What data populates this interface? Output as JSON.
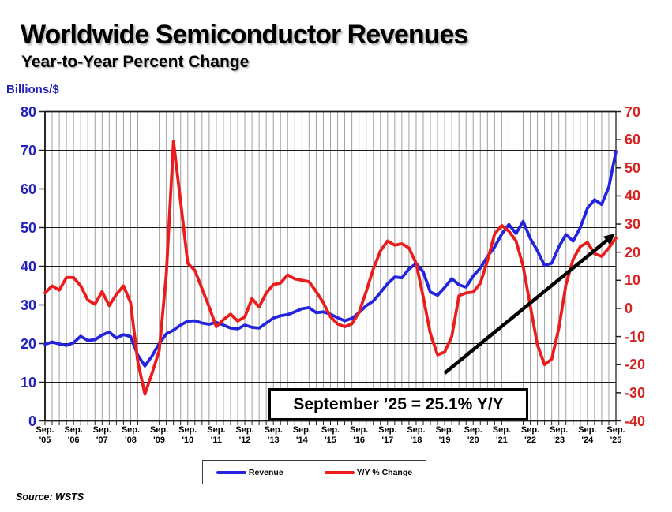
{
  "title": "Worldwide Semiconductor Revenues",
  "subtitle": "Year-to-Year Percent Change",
  "source": "Source: WSTS",
  "annotation": {
    "text": "September ’25 = 25.1% Y/Y"
  },
  "left_axis": {
    "label": "Billions/$",
    "color": "#2323bb",
    "ticks": [
      80,
      70,
      60,
      50,
      40,
      30,
      20,
      10,
      0
    ]
  },
  "right_axis": {
    "color": "#d32424",
    "ticks": [
      70,
      60,
      50,
      40,
      30,
      20,
      10,
      0,
      -10,
      -20,
      -30,
      -40
    ]
  },
  "x_axis": {
    "month_label": "Sep.",
    "years": [
      "'05",
      "'06",
      "'07",
      "'08",
      "'09",
      "'10",
      "'11",
      "'12",
      "'13",
      "'14",
      "'15",
      "'16",
      "'17",
      "'18",
      "'19",
      "'20",
      "'21",
      "'22",
      "'23",
      "'24",
      "'25"
    ]
  },
  "legend": [
    {
      "label": "Revenue",
      "color": "#2424dd"
    },
    {
      "label": "Y/Y % Change",
      "color": "#ea1c1c"
    }
  ],
  "chart_data": {
    "type": "line",
    "title": "Worldwide Semiconductor Revenues",
    "subtitle": "Year-to-Year Percent Change",
    "x_start": "Sep 2005",
    "x_end": "Sep 2025",
    "x_interval_months": 3,
    "left_ylabel": "Billions/$",
    "right_ylabel": "Y/Y % Change",
    "left_ylim": [
      0,
      80
    ],
    "right_ylim": [
      -40,
      70
    ],
    "grid": "vertical quarterly gray lines; horizontal black lines every 10 on left scale",
    "legend_position": "bottom-center",
    "highlight": "September '25 = 25.1% Y/Y (arrow points to last Y/Y value)",
    "series": [
      {
        "name": "Revenue",
        "axis": "left",
        "units": "US$ billions (monthly, 3-month avg)",
        "color": "#2424dd",
        "values": [
          19.8,
          20.4,
          19.9,
          19.5,
          20.2,
          21.9,
          20.8,
          21.0,
          22.2,
          23.0,
          21.4,
          22.3,
          21.8,
          17.0,
          14.2,
          16.8,
          20.0,
          22.5,
          23.5,
          24.8,
          25.8,
          25.9,
          25.3,
          25.0,
          25.5,
          24.8,
          24.0,
          23.8,
          24.8,
          24.2,
          24.0,
          25.3,
          26.6,
          27.2,
          27.5,
          28.2,
          29.0,
          29.3,
          28.0,
          28.2,
          27.6,
          26.7,
          25.9,
          26.5,
          28.0,
          29.8,
          31.0,
          33.2,
          35.5,
          37.2,
          37.0,
          39.3,
          40.7,
          38.5,
          33.3,
          32.5,
          34.5,
          36.8,
          35.2,
          34.6,
          37.5,
          39.5,
          42.5,
          45.0,
          48.3,
          50.8,
          48.5,
          51.6,
          47.2,
          44.0,
          40.2,
          40.8,
          45.0,
          48.2,
          46.5,
          50.0,
          55.0,
          57.2,
          56.0,
          60.5,
          69.7
        ]
      },
      {
        "name": "Y/Y % Change",
        "axis": "right",
        "units": "percent",
        "color": "#ea1c1c",
        "values": [
          5.5,
          8.0,
          6.5,
          11.0,
          11.0,
          8.0,
          3.0,
          1.5,
          6.0,
          1.0,
          5.0,
          8.0,
          2.0,
          -19.0,
          -30.5,
          -23.0,
          -15.0,
          12.0,
          59.5,
          38.0,
          16.0,
          13.5,
          7.0,
          0.5,
          -6.5,
          -4.0,
          -2.0,
          -4.5,
          -3.0,
          3.5,
          0.5,
          5.5,
          8.5,
          9.0,
          11.9,
          10.5,
          10.0,
          9.5,
          6.0,
          2.0,
          -3.0,
          -5.5,
          -6.5,
          -5.5,
          -1.5,
          6.0,
          14.0,
          20.5,
          24.0,
          22.5,
          23.0,
          21.5,
          16.0,
          4.0,
          -9.0,
          -16.5,
          -15.5,
          -10.0,
          4.5,
          5.5,
          5.8,
          9.0,
          17.0,
          26.5,
          29.5,
          27.5,
          24.0,
          15.0,
          1.0,
          -13.0,
          -20.0,
          -18.0,
          -7.0,
          8.5,
          17.5,
          22.0,
          23.5,
          19.5,
          18.5,
          21.5,
          25.1
        ]
      }
    ],
    "final_values": {
      "revenue_billions": 69.7,
      "yoy_percent": 25.1
    }
  }
}
